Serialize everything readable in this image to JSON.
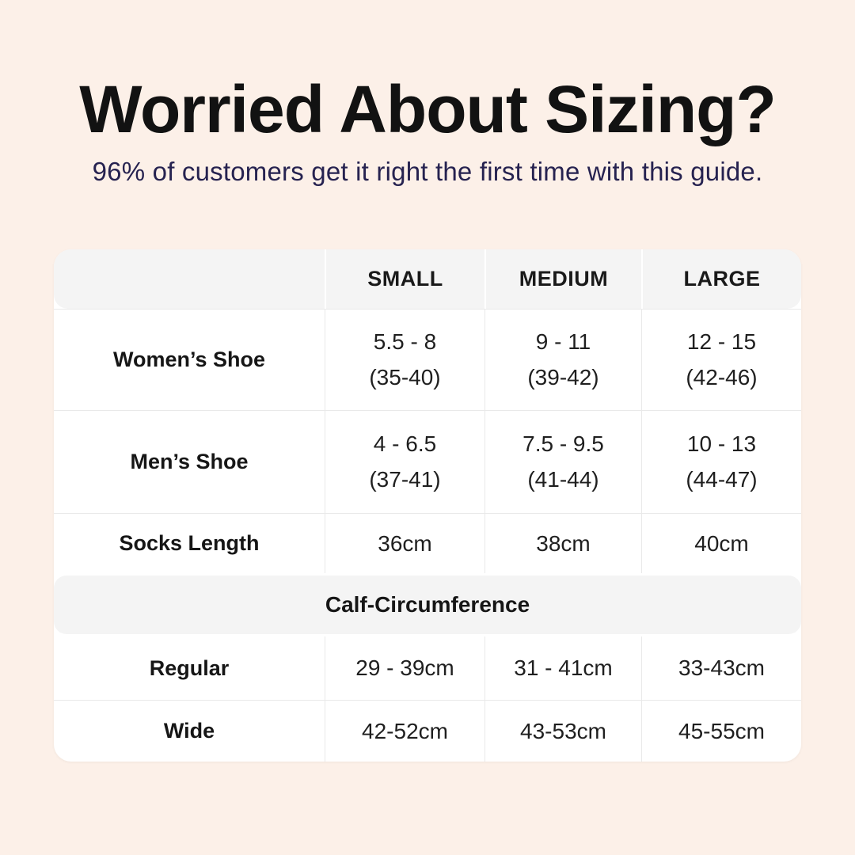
{
  "colors": {
    "background": "#fcf0e8",
    "card": "#ffffff",
    "band": "#f4f4f4",
    "divider": "#e9e9e9",
    "title": "#121212",
    "subtitle": "#262250",
    "text": "#1f1f1f"
  },
  "header": {
    "title": "Worried About Sizing?",
    "subtitle": "96% of customers get it right the first time with this guide."
  },
  "table": {
    "col_headers": [
      "SMALL",
      "MEDIUM",
      "LARGE"
    ],
    "shoe_rows": [
      {
        "label": "Women’s Shoe",
        "values": [
          {
            "range": "5.5 - 8",
            "eu": "(35-40)"
          },
          {
            "range": "9 - 11",
            "eu": "(39-42)"
          },
          {
            "range": "12 - 15",
            "eu": "(42-46)"
          }
        ]
      },
      {
        "label": "Men’s Shoe",
        "values": [
          {
            "range": "4 - 6.5",
            "eu": "(37-41)"
          },
          {
            "range": "7.5 - 9.5",
            "eu": "(41-44)"
          },
          {
            "range": "10 - 13",
            "eu": "(44-47)"
          }
        ]
      }
    ],
    "socks_row": {
      "label": "Socks Length",
      "values": [
        "36cm",
        "38cm",
        "40cm"
      ]
    },
    "section_header": "Calf-Circumference",
    "calf_rows": [
      {
        "label": "Regular",
        "values": [
          "29 - 39cm",
          "31 - 41cm",
          "33-43cm"
        ]
      },
      {
        "label": "Wide",
        "values": [
          "42-52cm",
          "43-53cm",
          "45-55cm"
        ]
      }
    ]
  }
}
